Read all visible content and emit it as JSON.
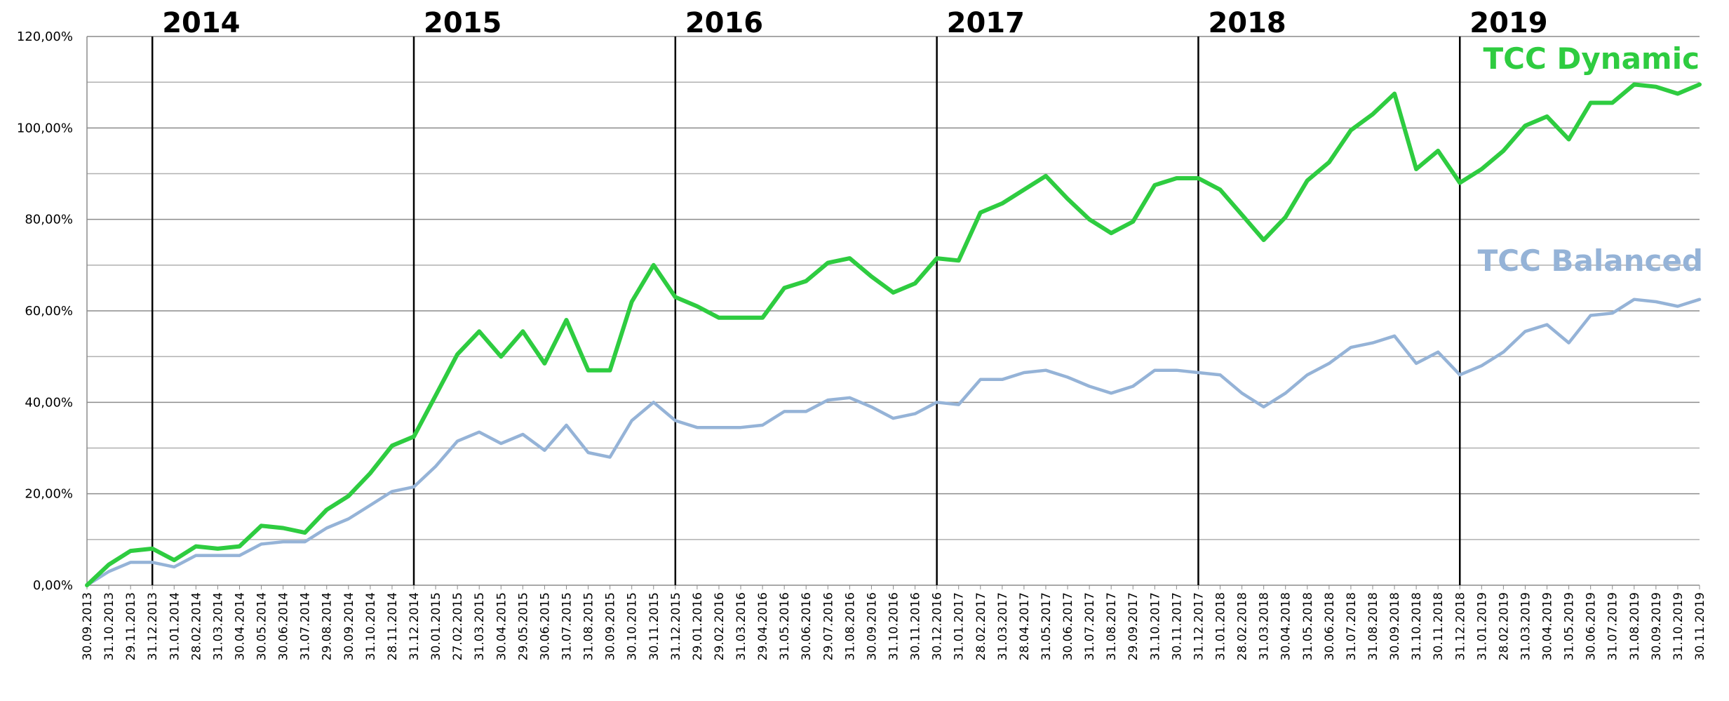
{
  "chart_data": {
    "type": "line",
    "title": "",
    "xlabel": "",
    "ylabel": "",
    "ylim": [
      0,
      120
    ],
    "y_unit": "%",
    "y_ticks": [
      "0,00%",
      "20,00%",
      "40,00%",
      "60,00%",
      "80,00%",
      "100,00%",
      "120,00%"
    ],
    "grid": "horizontal",
    "x": [
      "30.09.2013",
      "31.10.2013",
      "29.11.2013",
      "31.12.2013",
      "31.01.2014",
      "28.02.2014",
      "31.03.2014",
      "30.04.2014",
      "30.05.2014",
      "30.06.2014",
      "31.07.2014",
      "29.08.2014",
      "30.09.2014",
      "31.10.2014",
      "28.11.2014",
      "31.12.2014",
      "30.01.2015",
      "27.02.2015",
      "31.03.2015",
      "30.04.2015",
      "29.05.2015",
      "30.06.2015",
      "31.07.2015",
      "31.08.2015",
      "30.09.2015",
      "30.10.2015",
      "30.11.2015",
      "31.12.2015",
      "29.01.2016",
      "29.02.2016",
      "31.03.2016",
      "29.04.2016",
      "31.05.2016",
      "30.06.2016",
      "29.07.2016",
      "31.08.2016",
      "30.09.2016",
      "31.10.2016",
      "30.11.2016",
      "30.12.2016",
      "31.01.2017",
      "28.02.2017",
      "31.03.2017",
      "28.04.2017",
      "31.05.2017",
      "30.06.2017",
      "31.07.2017",
      "31.08.2017",
      "29.09.2017",
      "31.10.2017",
      "30.11.2017",
      "31.12.2017",
      "31.01.2018",
      "28.02.2018",
      "31.03.2018",
      "30.04.2018",
      "31.05.2018",
      "30.06.2018",
      "31.07.2018",
      "31.08.2018",
      "30.09.2018",
      "31.10.2018",
      "30.11.2018",
      "31.12.2018",
      "31.01.2019",
      "28.02.2019",
      "31.03.2019",
      "30.04.2019",
      "31.05.2019",
      "30.06.2019",
      "31.07.2019",
      "31.08.2019",
      "30.09.2019",
      "31.10.2019",
      "30.11.2019"
    ],
    "series": [
      {
        "name": "TCC Dynamic",
        "color": "#2ecc40",
        "values": [
          0,
          4.5,
          7.5,
          8,
          5.5,
          8.5,
          8,
          8.5,
          13,
          12.5,
          11.5,
          16.5,
          19.5,
          24.5,
          30.5,
          32.5,
          41.5,
          50.5,
          55.5,
          50,
          55.5,
          48.5,
          58,
          47,
          47,
          62,
          70,
          63,
          61,
          58.5,
          58.5,
          58.5,
          65,
          66.5,
          70.5,
          71.5,
          67.5,
          64,
          66,
          71.5,
          71,
          81.5,
          83.5,
          86.5,
          89.5,
          84.5,
          80,
          77,
          79.5,
          87.5,
          89,
          89,
          86.5,
          81,
          75.5,
          80.5,
          88.5,
          92.5,
          99.5,
          103,
          107.5,
          91,
          95,
          88,
          91,
          95,
          100.5,
          102.5,
          97.5,
          105.5,
          105.5,
          109.5,
          109,
          107.5,
          109.5
        ]
      },
      {
        "name": "TCC Balanced",
        "color": "#95b3d7",
        "values": [
          0,
          3,
          5,
          5,
          4,
          6.5,
          6.5,
          6.5,
          9,
          9.5,
          9.5,
          12.5,
          14.5,
          17.5,
          20.5,
          21.5,
          26,
          31.5,
          33.5,
          31,
          33,
          29.5,
          35,
          29,
          28,
          36,
          40,
          36,
          34.5,
          34.5,
          34.5,
          35,
          38,
          38,
          40.5,
          41,
          39,
          36.5,
          37.5,
          40,
          39.5,
          45,
          45,
          46.5,
          47,
          45.5,
          43.5,
          42,
          43.5,
          47,
          47,
          46.5,
          46,
          42,
          39,
          42,
          46,
          48.5,
          52,
          53,
          54.5,
          48.5,
          51,
          46,
          48,
          51,
          55.5,
          57,
          53,
          59,
          59.5,
          62.5,
          62,
          61,
          62.5
        ]
      }
    ],
    "annotations": [
      "2014",
      "2015",
      "2016",
      "2017",
      "2018",
      "2019"
    ],
    "year_boundary_indices": [
      3,
      15,
      27,
      39,
      51,
      63
    ]
  }
}
